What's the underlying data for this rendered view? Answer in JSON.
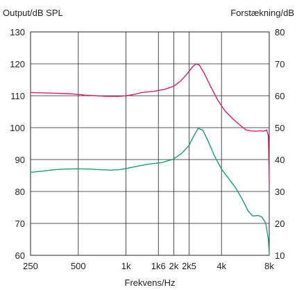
{
  "chart_data": {
    "type": "line",
    "left_axis_title": "Output/dB SPL",
    "right_axis_title": "Forstækning/dB",
    "xlabel": "Frekvens/Hz",
    "x_scale": "log",
    "xlim": [
      250,
      8000
    ],
    "x_ticks": [
      {
        "value": 250,
        "label": "250"
      },
      {
        "value": 500,
        "label": "500"
      },
      {
        "value": 1000,
        "label": "1k"
      },
      {
        "value": 1600,
        "label": "1k6"
      },
      {
        "value": 2000,
        "label": "2k"
      },
      {
        "value": 2500,
        "label": "2k5"
      },
      {
        "value": 4000,
        "label": "4k"
      },
      {
        "value": 8000,
        "label": "8k"
      }
    ],
    "ylim_left": [
      60,
      130
    ],
    "y_ticks_left": [
      60,
      70,
      80,
      90,
      100,
      110,
      120,
      130
    ],
    "ylim_right": [
      10,
      80
    ],
    "y_ticks_right": [
      10,
      20,
      30,
      40,
      50,
      60,
      70,
      80
    ],
    "grid": true,
    "series": [
      {
        "color": "#d6215b",
        "axis": "left",
        "points": [
          [
            250,
            111
          ],
          [
            350,
            110.8
          ],
          [
            450,
            110.6
          ],
          [
            550,
            110.2
          ],
          [
            650,
            110.0
          ],
          [
            750,
            109.8
          ],
          [
            900,
            109.8
          ],
          [
            1000,
            110.0
          ],
          [
            1100,
            110.3
          ],
          [
            1250,
            111.0
          ],
          [
            1500,
            111.4
          ],
          [
            1750,
            112.0
          ],
          [
            2000,
            113.0
          ],
          [
            2200,
            114.5
          ],
          [
            2400,
            116.6
          ],
          [
            2600,
            118.8
          ],
          [
            2750,
            120.0
          ],
          [
            2900,
            119.6
          ],
          [
            3100,
            117.2
          ],
          [
            3400,
            113.1
          ],
          [
            3800,
            108.5
          ],
          [
            4200,
            105.3
          ],
          [
            4700,
            102.8
          ],
          [
            5200,
            100.9
          ],
          [
            5700,
            99.3
          ],
          [
            6100,
            99.0
          ],
          [
            6600,
            98.9
          ],
          [
            7000,
            99.0
          ],
          [
            7400,
            98.9
          ],
          [
            7700,
            99.3
          ],
          [
            7900,
            97.5
          ],
          [
            8000,
            82.5
          ]
        ]
      },
      {
        "color": "#1a9c70",
        "axis": "left",
        "points": [
          [
            250,
            86
          ],
          [
            300,
            86.4
          ],
          [
            350,
            86.8
          ],
          [
            400,
            87.0
          ],
          [
            500,
            87.1
          ],
          [
            600,
            87.0
          ],
          [
            700,
            86.8
          ],
          [
            800,
            86.7
          ],
          [
            900,
            86.8
          ],
          [
            1000,
            87.2
          ],
          [
            1200,
            88.0
          ],
          [
            1400,
            88.6
          ],
          [
            1700,
            89.1
          ],
          [
            2000,
            90.2
          ],
          [
            2250,
            92.0
          ],
          [
            2500,
            94.5
          ],
          [
            2700,
            97.8
          ],
          [
            2850,
            99.8
          ],
          [
            3050,
            99.2
          ],
          [
            3300,
            95.7
          ],
          [
            3600,
            91.3
          ],
          [
            4000,
            87.0
          ],
          [
            4400,
            84.3
          ],
          [
            4900,
            81.2
          ],
          [
            5400,
            77.6
          ],
          [
            5900,
            73.8
          ],
          [
            6300,
            72.3
          ],
          [
            6800,
            72.5
          ],
          [
            7200,
            72.0
          ],
          [
            7600,
            70.1
          ],
          [
            7900,
            65.0
          ],
          [
            8000,
            60.2
          ]
        ]
      }
    ]
  }
}
